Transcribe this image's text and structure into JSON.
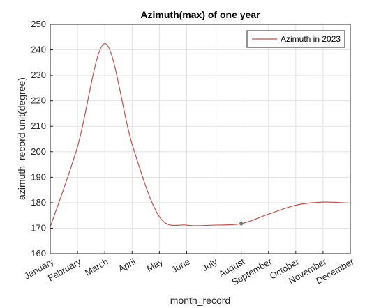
{
  "chart_data": {
    "type": "line",
    "title": "Azimuth(max) of one year",
    "xlabel": "month_record",
    "ylabel": "azimuth_record unit(degree)",
    "categories": [
      "January",
      "February",
      "March",
      "April",
      "May",
      "June",
      "July",
      "August",
      "September",
      "October",
      "November",
      "December"
    ],
    "ylim": [
      160,
      250
    ],
    "yticks": [
      160,
      170,
      180,
      190,
      200,
      210,
      220,
      230,
      240,
      250
    ],
    "grid": true,
    "legend_position": "top-right",
    "series": [
      {
        "name": "Azimuth in 2023",
        "color": "#c0504d",
        "values": [
          170.5,
          202,
          242.5,
          203,
          174.5,
          171.2,
          171.2,
          171.8,
          175.5,
          179,
          180.2,
          179.8
        ]
      }
    ],
    "marker": {
      "category": "August",
      "value": 171.8,
      "color": "#6b7b6b"
    }
  }
}
